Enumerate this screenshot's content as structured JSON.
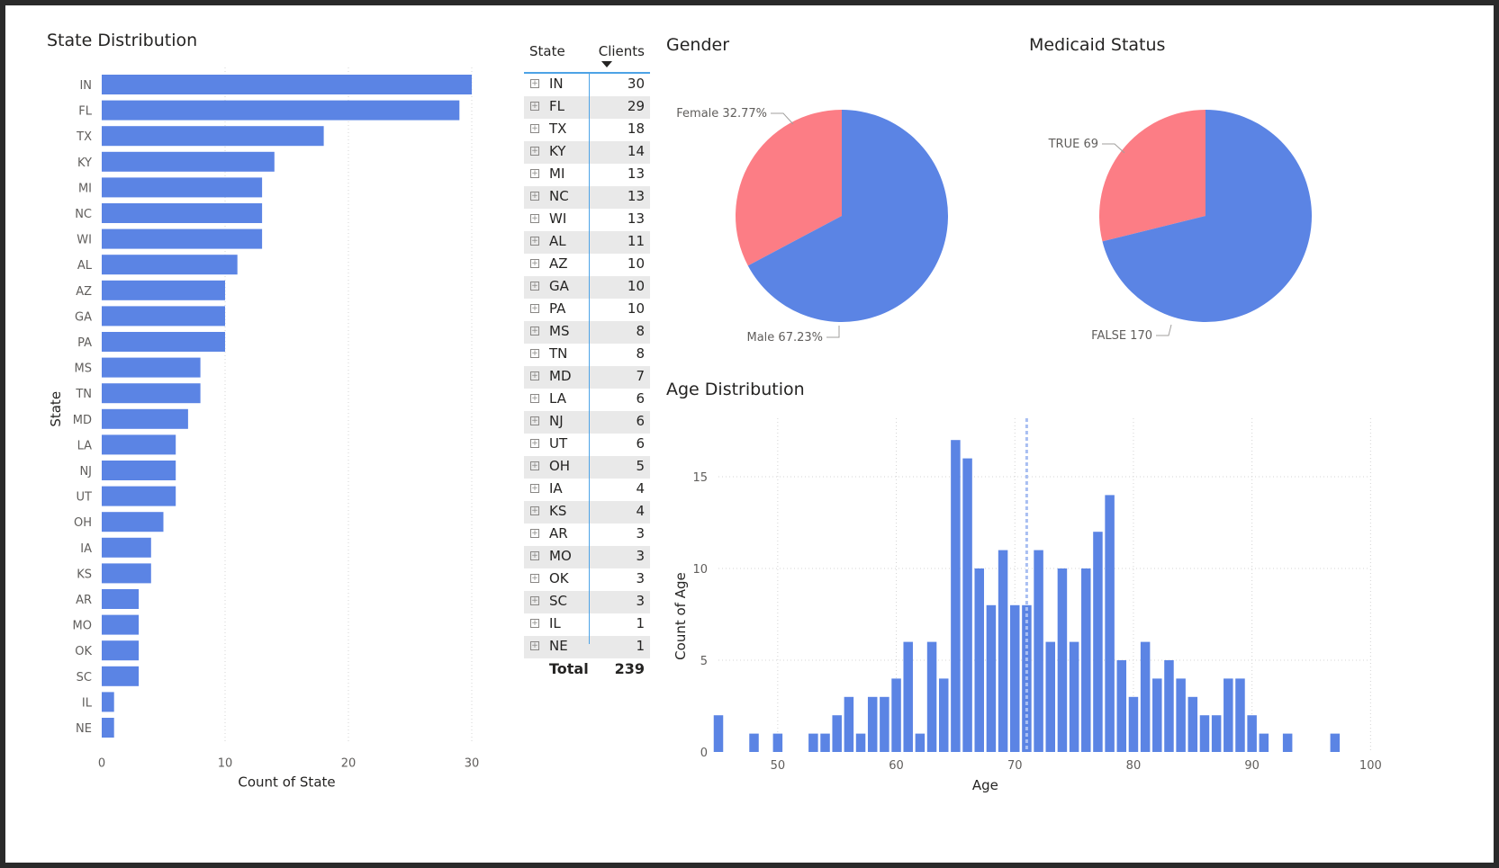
{
  "titles": {
    "state": "State Distribution",
    "gender": "Gender",
    "medicaid": "Medicaid Status",
    "age": "Age Distribution"
  },
  "colors": {
    "bar": "#5b84e4",
    "pie_a": "#5b84e4",
    "pie_b": "#fc7d85",
    "grid": "#d4d4d4",
    "table_line": "#4da3e6"
  },
  "table": {
    "col_state": "State",
    "col_clients": "Clients",
    "total_label": "Total",
    "total_value": "239",
    "rows": [
      {
        "state": "IN",
        "clients": "30"
      },
      {
        "state": "FL",
        "clients": "29"
      },
      {
        "state": "TX",
        "clients": "18"
      },
      {
        "state": "KY",
        "clients": "14"
      },
      {
        "state": "MI",
        "clients": "13"
      },
      {
        "state": "NC",
        "clients": "13"
      },
      {
        "state": "WI",
        "clients": "13"
      },
      {
        "state": "AL",
        "clients": "11"
      },
      {
        "state": "AZ",
        "clients": "10"
      },
      {
        "state": "GA",
        "clients": "10"
      },
      {
        "state": "PA",
        "clients": "10"
      },
      {
        "state": "MS",
        "clients": "8"
      },
      {
        "state": "TN",
        "clients": "8"
      },
      {
        "state": "MD",
        "clients": "7"
      },
      {
        "state": "LA",
        "clients": "6"
      },
      {
        "state": "NJ",
        "clients": "6"
      },
      {
        "state": "UT",
        "clients": "6"
      },
      {
        "state": "OH",
        "clients": "5"
      },
      {
        "state": "IA",
        "clients": "4"
      },
      {
        "state": "KS",
        "clients": "4"
      },
      {
        "state": "AR",
        "clients": "3"
      },
      {
        "state": "MO",
        "clients": "3"
      },
      {
        "state": "OK",
        "clients": "3"
      },
      {
        "state": "SC",
        "clients": "3"
      },
      {
        "state": "IL",
        "clients": "1"
      },
      {
        "state": "NE",
        "clients": "1"
      }
    ]
  },
  "chart_data": [
    {
      "type": "bar",
      "orientation": "horizontal",
      "title": "State Distribution",
      "xlabel": "Count of State",
      "ylabel": "State",
      "categories": [
        "IN",
        "FL",
        "TX",
        "KY",
        "MI",
        "NC",
        "WI",
        "AL",
        "AZ",
        "GA",
        "PA",
        "MS",
        "TN",
        "MD",
        "LA",
        "NJ",
        "UT",
        "OH",
        "IA",
        "KS",
        "AR",
        "MO",
        "OK",
        "SC",
        "IL",
        "NE"
      ],
      "values": [
        30,
        29,
        18,
        14,
        13,
        13,
        13,
        11,
        10,
        10,
        10,
        8,
        8,
        7,
        6,
        6,
        6,
        5,
        4,
        4,
        3,
        3,
        3,
        3,
        1,
        1
      ],
      "xlim": [
        0,
        30
      ],
      "xticks": [
        "0",
        "10",
        "20",
        "30"
      ],
      "grid": true
    },
    {
      "type": "pie",
      "title": "Gender",
      "slices": [
        {
          "label": "Female 32.77%",
          "value": 32.77
        },
        {
          "label": "Male 67.23%",
          "value": 67.23
        }
      ]
    },
    {
      "type": "pie",
      "title": "Medicaid Status",
      "slices": [
        {
          "label": "TRUE 69",
          "value": 69
        },
        {
          "label": "FALSE 170",
          "value": 170
        }
      ]
    },
    {
      "type": "bar",
      "title": "Age Distribution",
      "xlabel": "Age",
      "ylabel": "Count of Age",
      "x": [
        45,
        48,
        50,
        53,
        54,
        55,
        56,
        57,
        58,
        59,
        60,
        61,
        62,
        63,
        64,
        65,
        66,
        67,
        68,
        69,
        70,
        71,
        72,
        73,
        74,
        75,
        76,
        77,
        78,
        79,
        80,
        81,
        82,
        83,
        84,
        85,
        86,
        87,
        88,
        89,
        90,
        91,
        93,
        97
      ],
      "values": [
        2,
        1,
        1,
        1,
        1,
        2,
        3,
        1,
        3,
        3,
        4,
        6,
        1,
        6,
        4,
        17,
        16,
        10,
        8,
        11,
        8,
        8,
        11,
        6,
        10,
        6,
        10,
        12,
        14,
        5,
        3,
        6,
        4,
        5,
        4,
        3,
        2,
        2,
        4,
        4,
        2,
        1,
        1,
        1
      ],
      "xlim": [
        45,
        100
      ],
      "ylim": [
        0,
        18
      ],
      "xticks": [
        "50",
        "60",
        "70",
        "80",
        "90",
        "100"
      ],
      "yticks": [
        "0",
        "5",
        "10",
        "15"
      ],
      "reference_line_x": 71,
      "grid": true
    }
  ]
}
